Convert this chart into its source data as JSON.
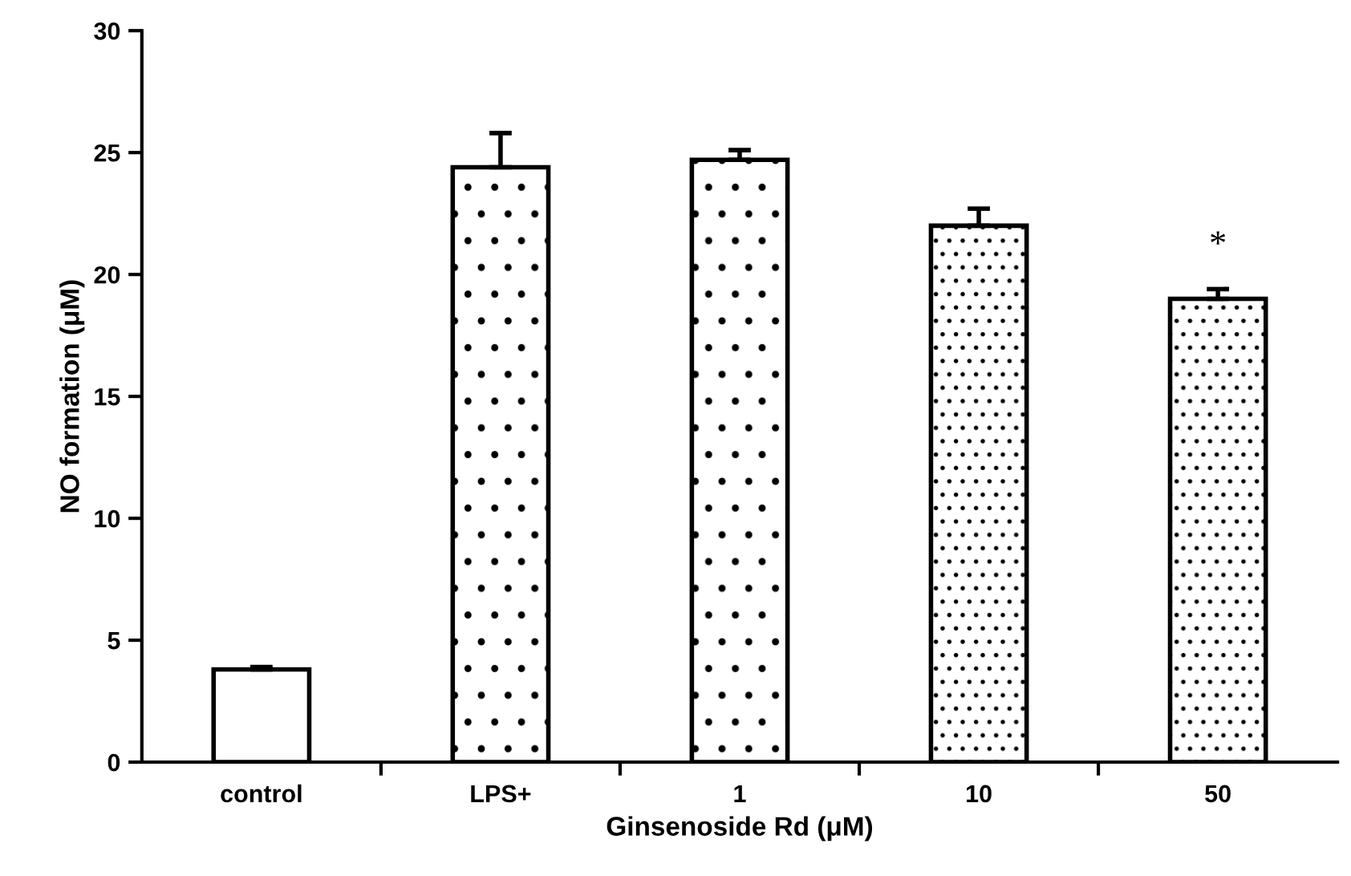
{
  "chart_data": {
    "type": "bar",
    "xlabel": "Ginsenoside Rd (μM)",
    "ylabel": "NO formation (μM)",
    "categories": [
      "control",
      "LPS+",
      "1",
      "10",
      "50"
    ],
    "values": [
      3.8,
      24.4,
      24.7,
      22.0,
      19.0
    ],
    "errors": [
      0.1,
      1.4,
      0.4,
      0.7,
      0.4
    ],
    "color": "#ffffff",
    "ylim": [
      0,
      30
    ],
    "yticks": [
      0,
      5,
      10,
      15,
      20,
      25,
      30
    ],
    "annotations": [
      "*"
    ],
    "grid": false,
    "legend": false
  }
}
